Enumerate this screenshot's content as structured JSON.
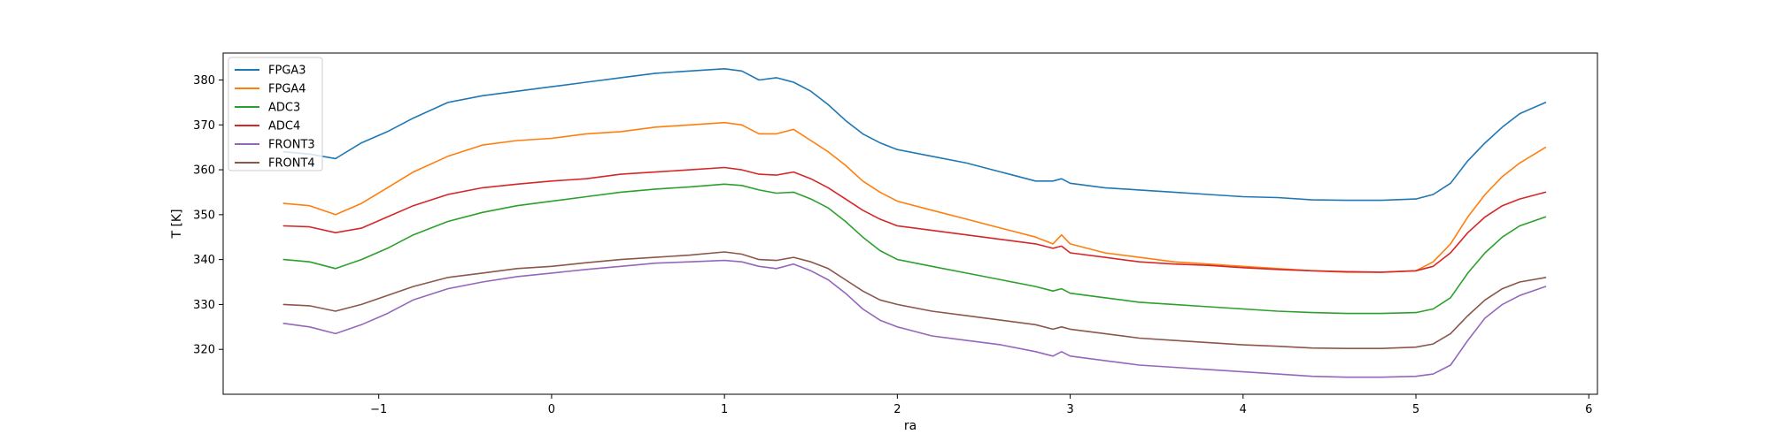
{
  "chart_data": {
    "type": "line",
    "xlabel": "ra",
    "ylabel": "T [K]",
    "xlim": [
      -1.9,
      6.05
    ],
    "ylim": [
      310,
      386
    ],
    "xticks": [
      -1,
      0,
      1,
      2,
      3,
      4,
      5,
      6
    ],
    "xtick_labels": [
      "−1",
      "0",
      "1",
      "2",
      "3",
      "4",
      "5",
      "6"
    ],
    "yticks": [
      320,
      330,
      340,
      350,
      360,
      370,
      380
    ],
    "ytick_labels": [
      "320",
      "330",
      "340",
      "350",
      "360",
      "370",
      "380"
    ],
    "grid": false,
    "legend_position": "top-left",
    "x": [
      -1.55,
      -1.4,
      -1.25,
      -1.1,
      -0.95,
      -0.8,
      -0.6,
      -0.4,
      -0.2,
      0,
      0.2,
      0.4,
      0.6,
      0.8,
      1,
      1.1,
      1.2,
      1.3,
      1.4,
      1.5,
      1.6,
      1.7,
      1.8,
      1.9,
      2,
      2.2,
      2.4,
      2.6,
      2.8,
      2.9,
      2.95,
      3,
      3.2,
      3.4,
      3.6,
      3.8,
      4,
      4.2,
      4.4,
      4.6,
      4.8,
      5,
      5.1,
      5.2,
      5.3,
      5.4,
      5.5,
      5.6,
      5.75
    ],
    "series": [
      {
        "name": "FPGA3",
        "color": "#1f77b4",
        "values": [
          364,
          363.5,
          362.5,
          366,
          368.5,
          371.5,
          375,
          376.5,
          377.5,
          378.5,
          379.5,
          380.5,
          381.5,
          382,
          382.5,
          382,
          380,
          380.5,
          379.5,
          377.5,
          374.5,
          371,
          368,
          366,
          364.5,
          363,
          361.5,
          359.5,
          357.5,
          357.5,
          358,
          357,
          356,
          355.5,
          355,
          354.5,
          354,
          353.8,
          353.3,
          353.2,
          353.2,
          353.5,
          354.5,
          357,
          362,
          366,
          369.5,
          372.5,
          375
        ]
      },
      {
        "name": "FPGA4",
        "color": "#ff7f0e",
        "values": [
          352.5,
          352,
          350,
          352.5,
          356,
          359.5,
          363,
          365.5,
          366.5,
          367,
          368,
          368.5,
          369.5,
          370,
          370.5,
          370,
          368,
          368,
          369,
          366.5,
          364,
          361,
          357.5,
          355,
          353,
          351,
          349,
          347,
          345,
          343.5,
          345.5,
          343.5,
          341.5,
          340.5,
          339.5,
          339,
          338.5,
          338,
          337.5,
          337.2,
          337.2,
          337.5,
          339.5,
          343.5,
          349.5,
          354.5,
          358.5,
          361.5,
          365
        ]
      },
      {
        "name": "ADC3",
        "color": "#2ca02c",
        "values": [
          340,
          339.5,
          338,
          340,
          342.5,
          345.5,
          348.5,
          350.5,
          352,
          353,
          354,
          355,
          355.7,
          356.2,
          356.8,
          356.5,
          355.5,
          354.8,
          355,
          353.5,
          351.5,
          348.5,
          345,
          342,
          340,
          338.5,
          337,
          335.5,
          334,
          333,
          333.5,
          332.5,
          331.5,
          330.5,
          330,
          329.5,
          329,
          328.5,
          328.2,
          328,
          328,
          328.2,
          329,
          331.5,
          337,
          341.5,
          345,
          347.5,
          349.5
        ]
      },
      {
        "name": "ADC4",
        "color": "#d62728",
        "values": [
          347.5,
          347.3,
          346,
          347,
          349.5,
          352,
          354.5,
          356,
          356.8,
          357.5,
          358,
          359,
          359.5,
          360,
          360.5,
          360,
          359,
          358.8,
          359.5,
          358,
          356,
          353.5,
          351,
          349,
          347.5,
          346.5,
          345.5,
          344.5,
          343.5,
          342.5,
          343,
          341.5,
          340.5,
          339.5,
          339,
          338.7,
          338.2,
          337.8,
          337.5,
          337.3,
          337.2,
          337.5,
          338.5,
          341.5,
          346,
          349.5,
          352,
          353.5,
          355
        ]
      },
      {
        "name": "FRONT3",
        "color": "#9467bd",
        "values": [
          325.8,
          325,
          323.5,
          325.5,
          328,
          331,
          333.5,
          335,
          336.2,
          337,
          337.8,
          338.5,
          339.2,
          339.5,
          339.8,
          339.5,
          338.5,
          338,
          339,
          337.5,
          335.5,
          332.5,
          329,
          326.5,
          325,
          323,
          322,
          321,
          319.5,
          318.5,
          319.5,
          318.5,
          317.5,
          316.5,
          316,
          315.5,
          315,
          314.5,
          314,
          313.8,
          313.8,
          314,
          314.5,
          316.5,
          322,
          327,
          330,
          332,
          334
        ]
      },
      {
        "name": "FRONT4",
        "color": "#8c564b",
        "values": [
          330,
          329.7,
          328.5,
          330,
          332,
          334,
          336,
          337,
          338,
          338.5,
          339.3,
          340,
          340.5,
          341,
          341.7,
          341.2,
          340,
          339.8,
          340.5,
          339.5,
          338,
          335.5,
          333,
          331,
          330,
          328.5,
          327.5,
          326.5,
          325.5,
          324.5,
          325,
          324.5,
          323.5,
          322.5,
          322,
          321.5,
          321,
          320.7,
          320.3,
          320.2,
          320.2,
          320.5,
          321.2,
          323.5,
          327.5,
          331,
          333.5,
          335,
          336
        ]
      }
    ]
  }
}
